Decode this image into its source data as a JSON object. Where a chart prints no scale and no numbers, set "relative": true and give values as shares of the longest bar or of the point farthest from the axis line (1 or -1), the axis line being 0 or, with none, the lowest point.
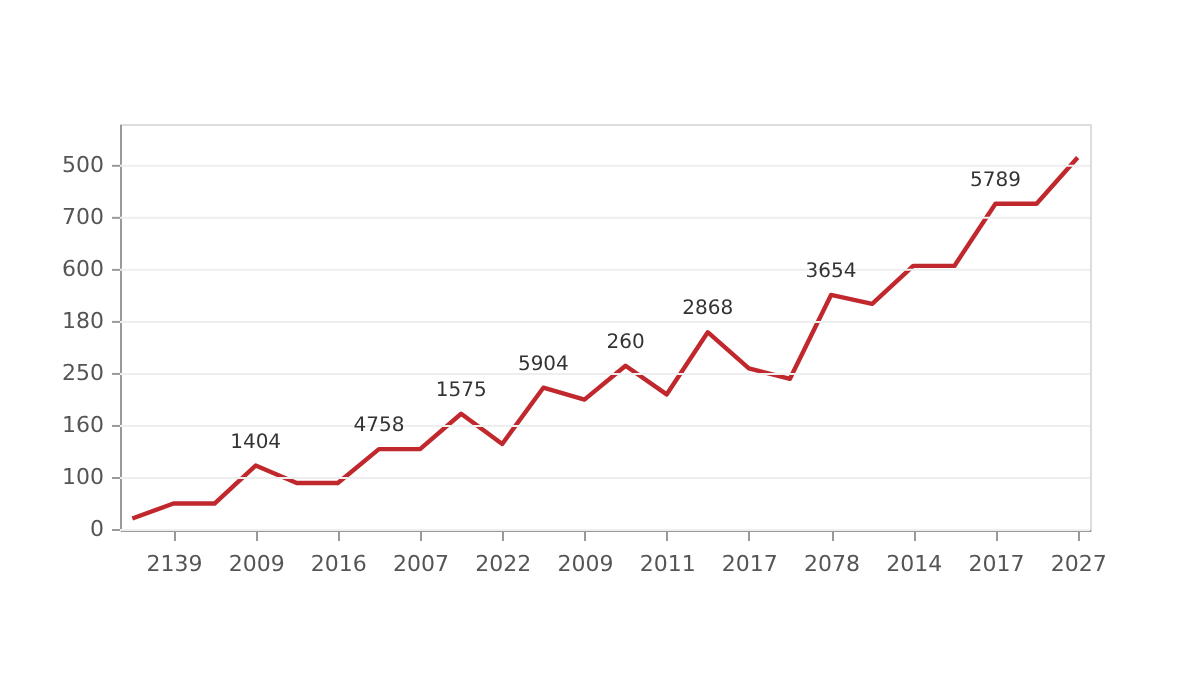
{
  "chart_data": {
    "type": "line",
    "relative": true,
    "categories": [
      null,
      "2139",
      null,
      "2009",
      null,
      "2016",
      null,
      "2007",
      null,
      "2022",
      null,
      "2009",
      null,
      "2011",
      null,
      "2017",
      null,
      "2078",
      null,
      "2014",
      null,
      "2017",
      null,
      "2027"
    ],
    "series": [
      {
        "color": "#c0282d",
        "values": [
          0.031,
          0.071,
          0.071,
          0.173,
          0.126,
          0.126,
          0.217,
          0.217,
          0.312,
          0.231,
          0.382,
          0.35,
          0.441,
          0.364,
          0.531,
          0.434,
          0.406,
          0.631,
          0.607,
          0.709,
          0.709,
          0.876,
          0.876,
          1
        ]
      }
    ],
    "annotations": [
      "0",
      "100",
      "160",
      "250",
      "180",
      "600",
      "700",
      "500",
      {
        "text": "1404",
        "x": "2009",
        "y": 0.173
      },
      {
        "text": "4758",
        "y": 0.217
      },
      {
        "text": "1575",
        "y": 0.312
      },
      {
        "text": "5904",
        "y": 0.382
      },
      {
        "text": "260",
        "y": 0.441
      },
      {
        "text": "2868",
        "y": 0.531
      },
      {
        "text": "3654",
        "x": "2078",
        "y": 0.631
      },
      {
        "text": "5789",
        "y": 0.876
      }
    ],
    "grid": "y",
    "legend": false,
    "marker": "none",
    "line_style": "solid"
  }
}
